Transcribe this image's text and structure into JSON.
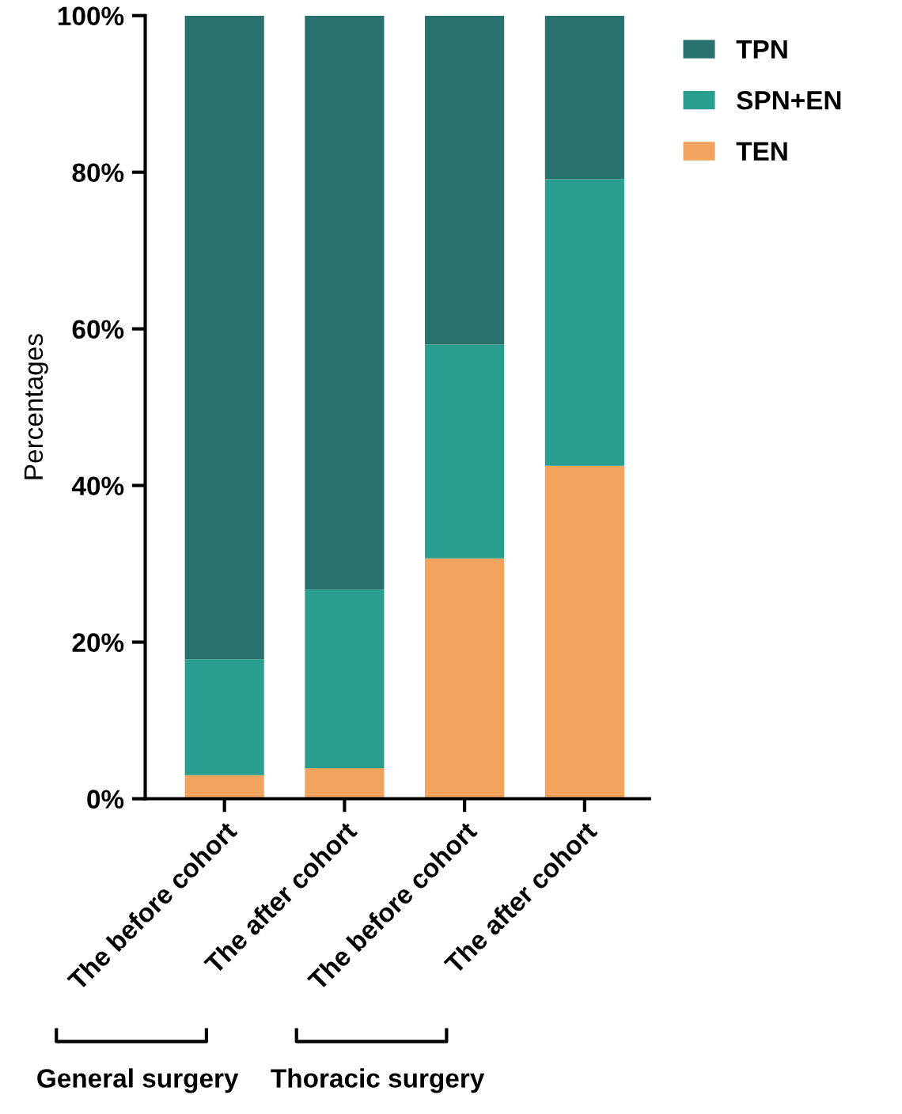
{
  "chart_data": {
    "type": "bar",
    "stacked": true,
    "ylabel": "Percentages",
    "categories": [
      "The before cohort",
      "The after cohort",
      "The before cohort",
      "The after cohort"
    ],
    "series": [
      {
        "name": "TEN",
        "color": "#f2a35e",
        "values": [
          3.0,
          3.9,
          30.7,
          42.5
        ]
      },
      {
        "name": "SPN+EN",
        "color": "#299e8e",
        "values": [
          14.8,
          22.8,
          27.3,
          36.6
        ]
      },
      {
        "name": "TPN",
        "color": "#28716c",
        "values": [
          82.2,
          73.3,
          42.0,
          20.9
        ]
      }
    ],
    "ylim": [
      0,
      100
    ],
    "yticks": [
      {
        "value": 0,
        "label": "0%"
      },
      {
        "value": 20,
        "label": "20%"
      },
      {
        "value": 40,
        "label": "40%"
      },
      {
        "value": 60,
        "label": "60%"
      },
      {
        "value": 80,
        "label": "80%"
      },
      {
        "value": 100,
        "label": "100%"
      }
    ],
    "legend": "top right",
    "grid": false,
    "annotations": [
      "General surgery",
      "Thoracic surgery"
    ]
  }
}
